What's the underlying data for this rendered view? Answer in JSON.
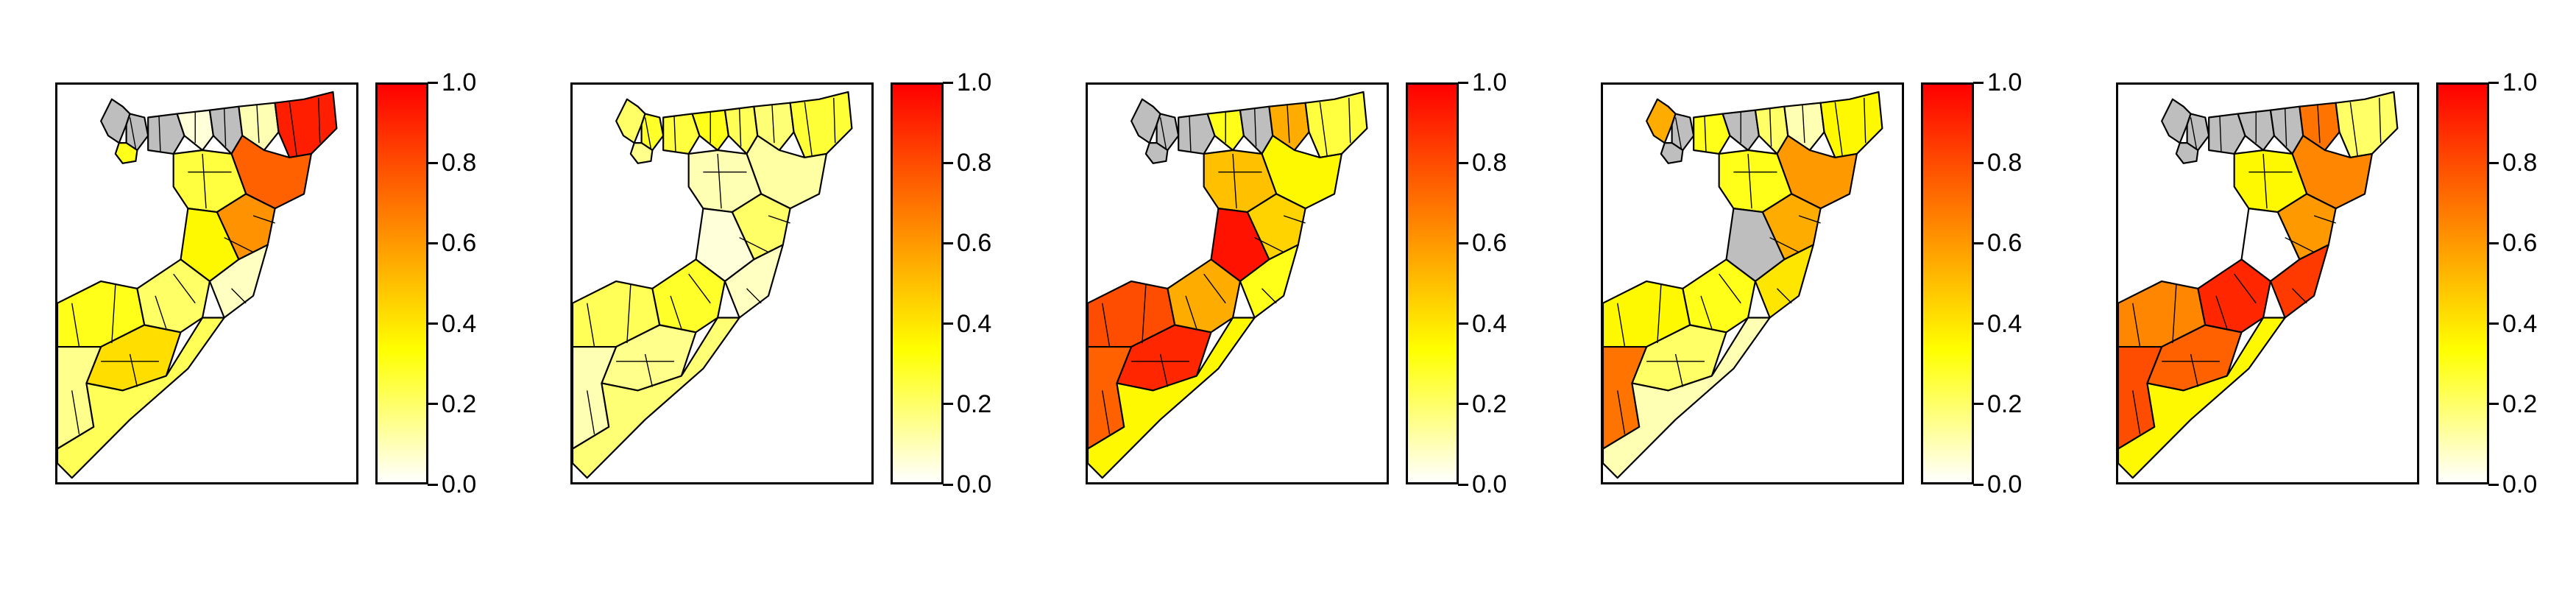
{
  "legend": {
    "colors": [
      "#ffffff",
      "#ffff00",
      "#ff8000",
      "#ff0000"
    ],
    "ticks": [
      "0.0",
      "0.2",
      "0.4",
      "0.6",
      "0.8",
      "1.0"
    ],
    "range": [
      0.0,
      1.0
    ]
  },
  "map": {
    "missing_color": "#bebebe",
    "outline_color": "#000000"
  },
  "panels": [
    {
      "regions": [
        {
          "id": "nw1",
          "v": null
        },
        {
          "id": "nw2",
          "v": null
        },
        {
          "id": "nw3",
          "v": 0.3
        },
        {
          "id": "n1",
          "v": null
        },
        {
          "id": "n2",
          "v": 0.05
        },
        {
          "id": "n3",
          "v": null
        },
        {
          "id": "n4",
          "v": 0.1
        },
        {
          "id": "n5",
          "v": 0.92
        },
        {
          "id": "n6",
          "v": 0.75
        },
        {
          "id": "c1",
          "v": 0.25
        },
        {
          "id": "c2",
          "v": 0.62
        },
        {
          "id": "c3",
          "v": 0.35
        },
        {
          "id": "c4",
          "v": 0.08
        },
        {
          "id": "s1",
          "v": 0.3
        },
        {
          "id": "s2",
          "v": 0.42
        },
        {
          "id": "s3",
          "v": 0.2
        },
        {
          "id": "s4",
          "v": 0.15
        },
        {
          "id": "s5",
          "v": 0.22
        }
      ]
    },
    {
      "regions": [
        {
          "id": "nw1",
          "v": 0.2
        },
        {
          "id": "nw2",
          "v": 0.28
        },
        {
          "id": "nw3",
          "v": 0.15
        },
        {
          "id": "n1",
          "v": 0.25
        },
        {
          "id": "n2",
          "v": 0.3
        },
        {
          "id": "n3",
          "v": 0.22
        },
        {
          "id": "n4",
          "v": 0.18
        },
        {
          "id": "n5",
          "v": 0.26
        },
        {
          "id": "n6",
          "v": 0.12
        },
        {
          "id": "c1",
          "v": 0.1
        },
        {
          "id": "c2",
          "v": 0.2
        },
        {
          "id": "c3",
          "v": 0.05
        },
        {
          "id": "c4",
          "v": 0.08
        },
        {
          "id": "s1",
          "v": 0.22
        },
        {
          "id": "s2",
          "v": 0.15
        },
        {
          "id": "s3",
          "v": 0.28
        },
        {
          "id": "s4",
          "v": 0.1
        },
        {
          "id": "s5",
          "v": 0.18
        }
      ]
    },
    {
      "regions": [
        {
          "id": "nw1",
          "v": null
        },
        {
          "id": "nw2",
          "v": null
        },
        {
          "id": "nw3",
          "v": null
        },
        {
          "id": "n1",
          "v": null
        },
        {
          "id": "n2",
          "v": 0.3
        },
        {
          "id": "n3",
          "v": null
        },
        {
          "id": "n4",
          "v": 0.55
        },
        {
          "id": "n5",
          "v": 0.25
        },
        {
          "id": "n6",
          "v": 0.35
        },
        {
          "id": "c1",
          "v": 0.5
        },
        {
          "id": "c2",
          "v": 0.45
        },
        {
          "id": "c3",
          "v": 0.95
        },
        {
          "id": "c4",
          "v": 0.3
        },
        {
          "id": "s1",
          "v": 0.8
        },
        {
          "id": "s2",
          "v": 0.9
        },
        {
          "id": "s3",
          "v": 0.55
        },
        {
          "id": "s4",
          "v": 0.75
        },
        {
          "id": "s5",
          "v": 0.35
        }
      ]
    },
    {
      "regions": [
        {
          "id": "nw1",
          "v": 0.55
        },
        {
          "id": "nw2",
          "v": null
        },
        {
          "id": "nw3",
          "v": null
        },
        {
          "id": "n1",
          "v": 0.3
        },
        {
          "id": "n2",
          "v": null
        },
        {
          "id": "n3",
          "v": 0.2
        },
        {
          "id": "n4",
          "v": 0.1
        },
        {
          "id": "n5",
          "v": 0.35
        },
        {
          "id": "n6",
          "v": 0.6
        },
        {
          "id": "c1",
          "v": 0.3
        },
        {
          "id": "c2",
          "v": 0.55
        },
        {
          "id": "c3",
          "v": null
        },
        {
          "id": "c4",
          "v": 0.4
        },
        {
          "id": "s1",
          "v": 0.35
        },
        {
          "id": "s2",
          "v": 0.2
        },
        {
          "id": "s3",
          "v": 0.3
        },
        {
          "id": "s4",
          "v": 0.7
        },
        {
          "id": "s5",
          "v": 0.1
        }
      ]
    },
    {
      "regions": [
        {
          "id": "nw1",
          "v": null
        },
        {
          "id": "nw2",
          "v": null
        },
        {
          "id": "nw3",
          "v": null
        },
        {
          "id": "n1",
          "v": null
        },
        {
          "id": "n2",
          "v": null
        },
        {
          "id": "n3",
          "v": null
        },
        {
          "id": "n4",
          "v": 0.7
        },
        {
          "id": "n5",
          "v": 0.2
        },
        {
          "id": "n6",
          "v": 0.65
        },
        {
          "id": "c1",
          "v": 0.35
        },
        {
          "id": "c2",
          "v": 0.6
        },
        {
          "id": "c3",
          "v": 0.0
        },
        {
          "id": "c4",
          "v": 0.85
        },
        {
          "id": "s1",
          "v": 0.65
        },
        {
          "id": "s2",
          "v": 0.75
        },
        {
          "id": "s3",
          "v": 0.9
        },
        {
          "id": "s4",
          "v": 0.8
        },
        {
          "id": "s5",
          "v": 0.35
        }
      ]
    }
  ]
}
